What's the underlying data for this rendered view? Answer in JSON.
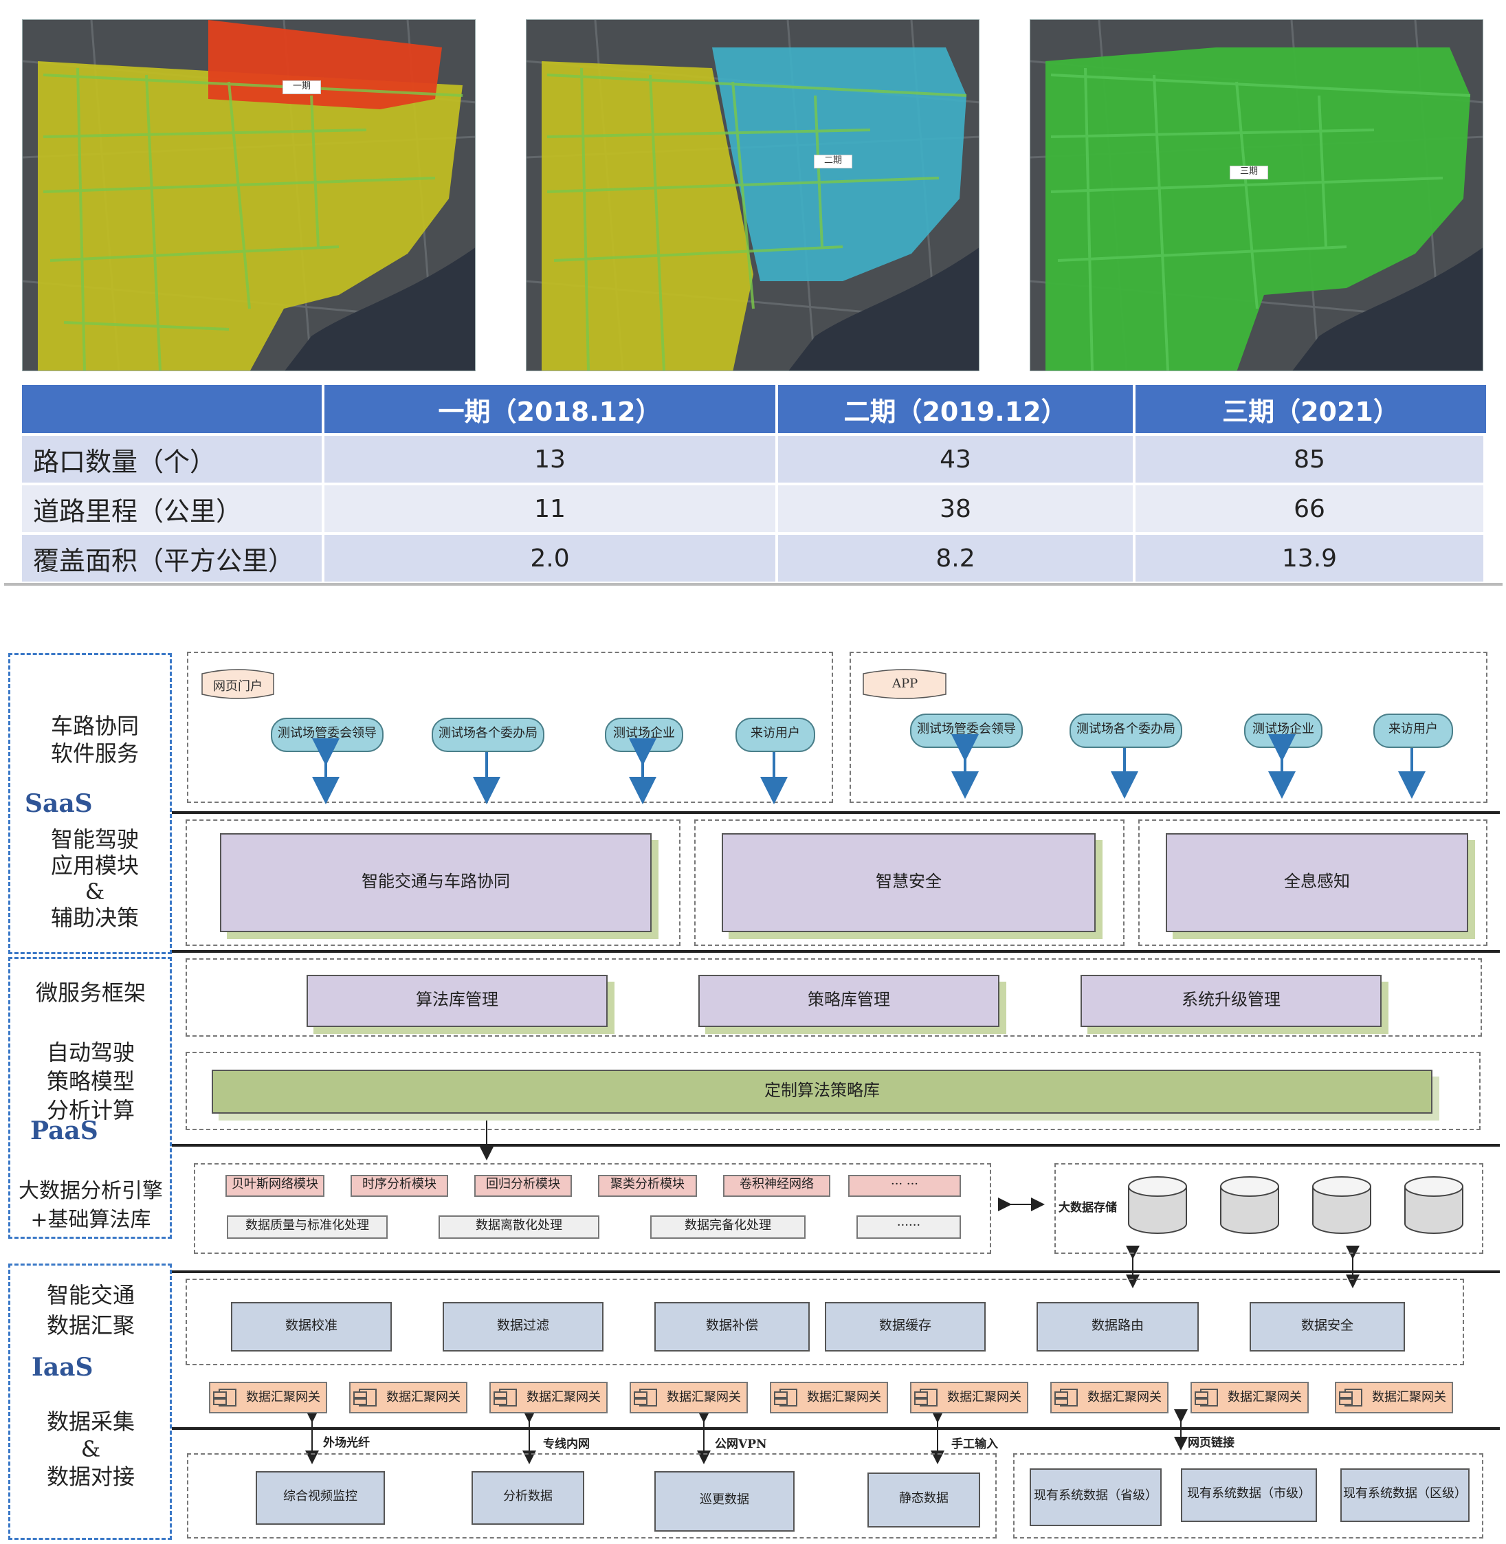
{
  "maps": [
    {
      "phase_marker": "一期"
    },
    {
      "phase_marker": "二期"
    },
    {
      "phase_marker": "三期"
    }
  ],
  "colors": {
    "phase1": "#e0401c",
    "phase2": "#3fb0c8",
    "phase3": "#3db53a",
    "base": "#c2bf22",
    "table_header": "#4472c4",
    "dash": "#3a78c7"
  },
  "table": {
    "headers": [
      "",
      "一期（2018.12）",
      "二期（2019.12）",
      "三期（2021）"
    ],
    "rows": [
      [
        "路口数量（个）",
        "13",
        "43",
        "85"
      ],
      [
        "道路里程（公里）",
        "11",
        "38",
        "66"
      ],
      [
        "覆盖面积（平方公里）",
        "2.0",
        "8.2",
        "13.9"
      ]
    ]
  },
  "arch": {
    "side": {
      "saas_top": "车路协同\n软件服务",
      "saas_label": "SaaS",
      "saas_bottom": "智能驾驶\n应用模块\n&\n辅助决策",
      "paas_top": "微服务框架",
      "paas_mid": "自动驾驶\n策略模型\n分析计算",
      "paas_label": "PaaS",
      "paas_bottom": "大数据分析引擎\n+基础算法库",
      "iaas_top": "智能交通\n数据汇聚",
      "iaas_label": "IaaS",
      "iaas_bottom": "数据采集\n&\n数据对接"
    },
    "web_portal": {
      "flag": "网页门户",
      "users": [
        "测试场管委会领导",
        "测试场各个委办局",
        "测试场企业",
        "来访用户"
      ]
    },
    "app_portal": {
      "flag": "APP",
      "users": [
        "测试场管委会领导",
        "测试场各个委办局",
        "测试场企业",
        "来访用户"
      ]
    },
    "apps": [
      "智能交通与车路协同",
      "智慧安全",
      "全息感知"
    ],
    "mgmt": [
      "算法库管理",
      "策略库管理",
      "系统升级管理"
    ],
    "custom_lib": "定制算法策略库",
    "analysis_modules": [
      "贝叶斯网络模块",
      "时序分析模块",
      "回归分析模块",
      "聚类分析模块",
      "卷积神经网络",
      "··· ···"
    ],
    "processing": [
      "数据质量与标准化处理",
      "数据离散化处理",
      "数据完备化处理",
      "······"
    ],
    "storage_label": "大数据存储",
    "data_services": [
      "数据校准",
      "数据过滤",
      "数据补偿",
      "数据缓存",
      "数据路由",
      "数据安全"
    ],
    "gateway_label": "数据汇聚网关",
    "edges": [
      "外场光纤",
      "专线内网",
      "公网VPN",
      "手工输入",
      "网页链接"
    ],
    "sources": [
      "综合视频监控",
      "分析数据",
      "巡更数据",
      "静态数据"
    ],
    "existing": [
      "现有系统数据（省级）",
      "现有系统数据（市级）",
      "现有系统数据（区级）"
    ]
  }
}
